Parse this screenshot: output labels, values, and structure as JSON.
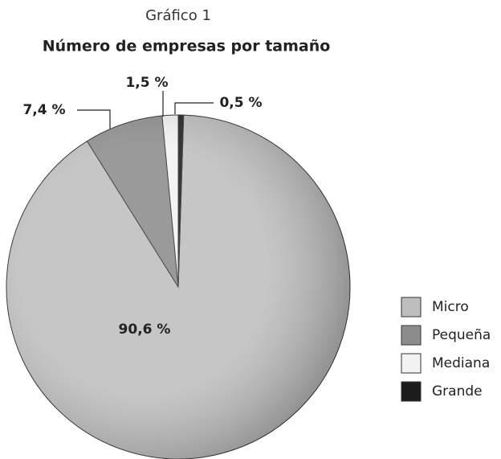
{
  "chart_data": {
    "type": "pie",
    "title": "Gráfico 1",
    "subtitle": "Número de empresas por tamaño",
    "categories": [
      "Micro",
      "Pequeña",
      "Mediana",
      "Grande"
    ],
    "values": [
      90.6,
      7.4,
      1.5,
      0.5
    ],
    "value_labels": [
      "90,6 %",
      "7,4 %",
      "1,5 %",
      "0,5 %"
    ],
    "colors": [
      "#bebebe",
      "#8c8c8c",
      "#f2f2f2",
      "#1c1c1c"
    ],
    "legend": "right"
  }
}
